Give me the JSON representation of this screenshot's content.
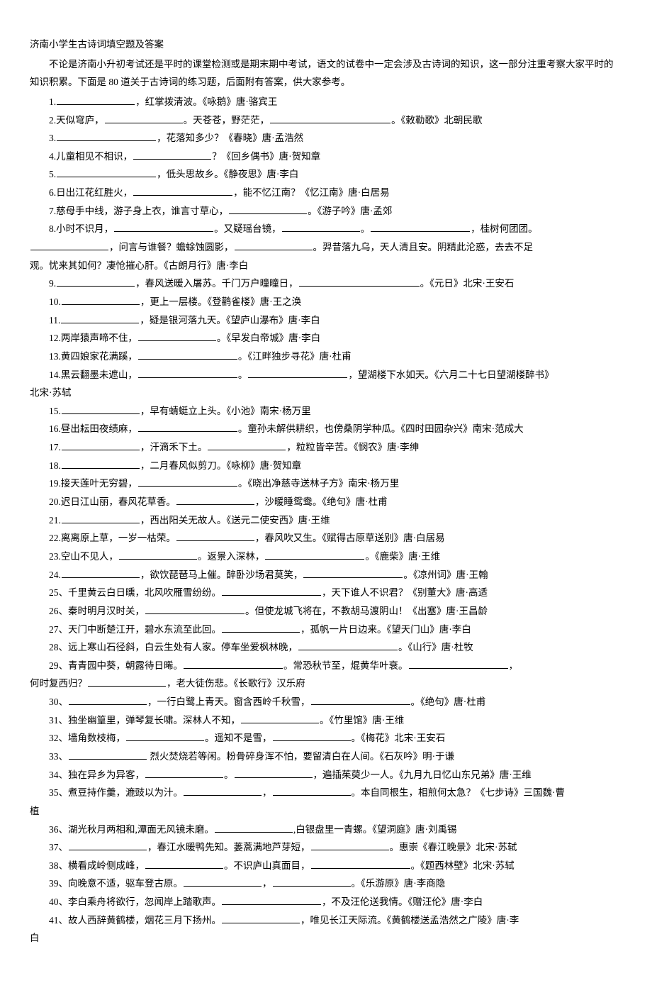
{
  "title": "济南小学生古诗词填空题及答案",
  "intro": "不论是济南小升初考试还是平时的课堂检测或是期末期中考试，语文的试卷中一定会涉及古诗词的知识，这一部分注重考察大家平时的知识积累。下面是 80 道关于古诗词的练习题，后面附有答案，供大家参考。",
  "bw": {
    "s": 85,
    "m": 110,
    "l": 140,
    "xl": 170
  },
  "q": [
    {
      "n": "1",
      "parts": [
        "1.",
        "~m",
        "，红掌拨清波。《咏鹅》唐·骆宾王"
      ]
    },
    {
      "n": "2",
      "parts": [
        "2.天似穹庐，",
        "~m",
        "。天苍苍，野茫茫，",
        "~xl",
        "。《敕勒歌》北朝民歌"
      ]
    },
    {
      "n": "3",
      "parts": [
        "3.",
        "~l",
        "，花落知多少？《春晓》唐·孟浩然"
      ]
    },
    {
      "n": "4",
      "parts": [
        "4.儿童相见不相识，",
        "~m",
        "？《回乡偶书》唐·贺知章"
      ]
    },
    {
      "n": "5",
      "parts": [
        "5.",
        "~l",
        "，低头思故乡。《静夜思》唐·李白"
      ]
    },
    {
      "n": "6",
      "parts": [
        "6.日出江花红胜火，",
        "~l",
        "，能不忆江南？《忆江南》唐·白居易"
      ]
    },
    {
      "n": "7",
      "parts": [
        "7.慈母手中线，游子身上衣，谁言寸草心，",
        "~m",
        "。《游子吟》唐·孟郊"
      ]
    },
    {
      "n": "8",
      "parts": [
        " 8.小时不识月，",
        "~l",
        "。又疑瑶台镜，",
        "~m",
        "。",
        "~l",
        "，桂树何团团。",
        "|",
        "~m",
        "，问言与谁餐？蟾蜍蚀圆影，",
        "~m",
        "。羿昔落九乌，天人清且安。阴精此沦惑，去去不足",
        "|0",
        "观。忧来其如何？凄怆摧心肝。《古朗月行》唐·李白"
      ]
    },
    {
      "n": "9",
      "parts": [
        "9.",
        "~m",
        "，春风送暖入屠苏。千门万户曈曈日，",
        "~xl",
        "。《元日》北宋·王安石"
      ]
    },
    {
      "n": "10",
      "parts": [
        "10.",
        "~m",
        "，更上一层楼。《登鹳雀楼》唐·王之涣"
      ]
    },
    {
      "n": "11",
      "parts": [
        "11.",
        "~m",
        "，疑是银河落九天。《望庐山瀑布》唐·李白"
      ]
    },
    {
      "n": "12",
      "parts": [
        "12.两岸猿声啼不住，",
        "~m",
        "。《早发白帝城》唐·李白"
      ]
    },
    {
      "n": "13",
      "parts": [
        "13.黄四娘家花满蹊，",
        "~l",
        "。《江畔独步寻花》唐·杜甫"
      ]
    },
    {
      "n": "14",
      "parts": [
        "14.黑云翻墨未遮山，",
        "~l",
        "。",
        "~l",
        "，望湖楼下水如天。《六月二十七日望湖楼醉书》",
        "|0",
        "北宋·苏轼"
      ]
    },
    {
      "n": "15",
      "parts": [
        "15.",
        "~m",
        "，早有蜻蜓立上头。《小池》南宋·杨万里"
      ]
    },
    {
      "n": "16",
      "parts": [
        "16.昼出耘田夜绩麻，",
        "~l",
        "。童孙未解供耕织，也傍桑阴学种瓜。《四时田园杂兴》南宋·范成大"
      ]
    },
    {
      "n": "17",
      "parts": [
        "17.",
        "~m",
        "，汗滴禾下土。",
        "~m",
        "，粒粒皆辛苦。《悯农》唐·李绅"
      ]
    },
    {
      "n": "18",
      "parts": [
        "18.",
        "~m",
        "，二月春风似剪刀。《咏柳》唐·贺知章"
      ]
    },
    {
      "n": "19",
      "parts": [
        "19.接天莲叶无穷碧，",
        "~l",
        "。《晓出净慈寺送林子方》南宋·杨万里"
      ]
    },
    {
      "n": "20",
      "parts": [
        "20.迟日江山丽，春风花草香。",
        "~m",
        "，沙暖睡鸳鸯。《绝句》唐·杜甫"
      ]
    },
    {
      "n": "21",
      "parts": [
        "21.",
        "~m",
        "，西出阳关无故人。《送元二使安西》唐·王维"
      ]
    },
    {
      "n": "22",
      "parts": [
        "22.离离原上草，一岁一枯荣。",
        "~m",
        "，春风吹又生。《赋得古原草送别》唐·白居易"
      ]
    },
    {
      "n": "23",
      "parts": [
        "23.空山不见人，",
        "~m",
        "。返景入深林，",
        "~l",
        "。《鹿柴》唐·王维"
      ]
    },
    {
      "n": "24",
      "parts": [
        "24.",
        "~m",
        "，欲饮琵琶马上催。醉卧沙场君莫笑，",
        "~l",
        "。《凉州词》唐·王翰"
      ]
    },
    {
      "n": "25",
      "parts": [
        "25、千里黄云白日曛，北风吹雁雪纷纷。",
        "~l",
        "，天下谁人不识君？《别董大》唐·高适"
      ]
    },
    {
      "n": "26",
      "parts": [
        "26、秦时明月汉时关，",
        "~l",
        "。但使龙城飞将在，不教胡马渡阴山！《出塞》唐·王昌龄"
      ]
    },
    {
      "n": "27",
      "parts": [
        "27、天门中断楚江开，碧水东流至此回。",
        "~m",
        "，孤帆一片日边来。《望天门山》唐·李白"
      ]
    },
    {
      "n": "28",
      "parts": [
        "28、远上寒山石径斜，白云生处有人家。停车坐爱枫林晚，",
        "~l",
        "。《山行》唐·杜牧"
      ]
    },
    {
      "n": "29",
      "parts": [
        "29、青青园中葵，朝露待日晞。",
        "~l",
        "。常恐秋节至，焜黄华叶衰。",
        "~l",
        "，",
        "|0",
        "何时复西归？",
        "~m",
        "，老大徒伤悲。《长歌行》汉乐府"
      ]
    },
    {
      "n": "30",
      "parts": [
        "30、",
        "~m",
        "，一行白鹭上青天。窗含西岭千秋雪，",
        "~l",
        "。《绝句》唐·杜甫"
      ]
    },
    {
      "n": "31",
      "parts": [
        "31、独坐幽篁里，弹琴复长啸。深林人不知，",
        "~m",
        "。《竹里馆》唐·王维"
      ]
    },
    {
      "n": "32",
      "parts": [
        "32、墙角数枝梅，",
        "~m",
        "。遥知不是雪，",
        "~m",
        "。《梅花》北宋·王安石"
      ]
    },
    {
      "n": "33",
      "parts": [
        "33、",
        "~m",
        " 烈火焚烧若等闲。粉骨碎身浑不怕，要留清白在人间。《石灰吟》明·于谦"
      ]
    },
    {
      "n": "34",
      "parts": [
        "34、独在异乡为异客，",
        "~m",
        "。",
        "~m",
        "，遍插茱萸少一人。《九月九日忆山东兄弟》唐·王维"
      ]
    },
    {
      "n": "35",
      "parts": [
        "35、煮豆持作羹，漉豉以为汁。",
        "~m",
        "，",
        "~m",
        "。本自同根生，相煎何太急？《七步诗》三国魏·曹",
        "|0",
        "植"
      ]
    },
    {
      "n": "36",
      "parts": [
        "36、湖光秋月两相和,潭面无风镜未磨。",
        "~m",
        ",白银盘里一青螺。《望洞庭》唐·刘禹锡"
      ]
    },
    {
      "n": "37",
      "parts": [
        "37、",
        "~m",
        "，春江水暖鸭先知。蒌蒿满地芦芽短，",
        "~m",
        "。惠崇《春江晚景》北宋·苏轼"
      ]
    },
    {
      "n": "38",
      "parts": [
        "38、横看成岭侧成峰，",
        "~m",
        "。不识庐山真面目，",
        "~l",
        "。《题西林壁》北宋·苏轼"
      ]
    },
    {
      "n": "39",
      "parts": [
        "39、向晚意不适，驱车登古原。",
        "~m",
        "，",
        "~m",
        "。《乐游原》唐·李商隐"
      ]
    },
    {
      "n": "40",
      "parts": [
        "40、李白乘舟将欲行，忽闻岸上踏歌声。",
        "~l",
        "，不及汪伦送我情。《赠汪伦》唐·李白"
      ]
    },
    {
      "n": "41",
      "parts": [
        "41、故人西辞黄鹤楼，烟花三月下扬州。",
        "~m",
        "，唯见长江天际流。《黄鹤楼送孟浩然之广陵》唐·李",
        "|0",
        "白"
      ]
    }
  ]
}
